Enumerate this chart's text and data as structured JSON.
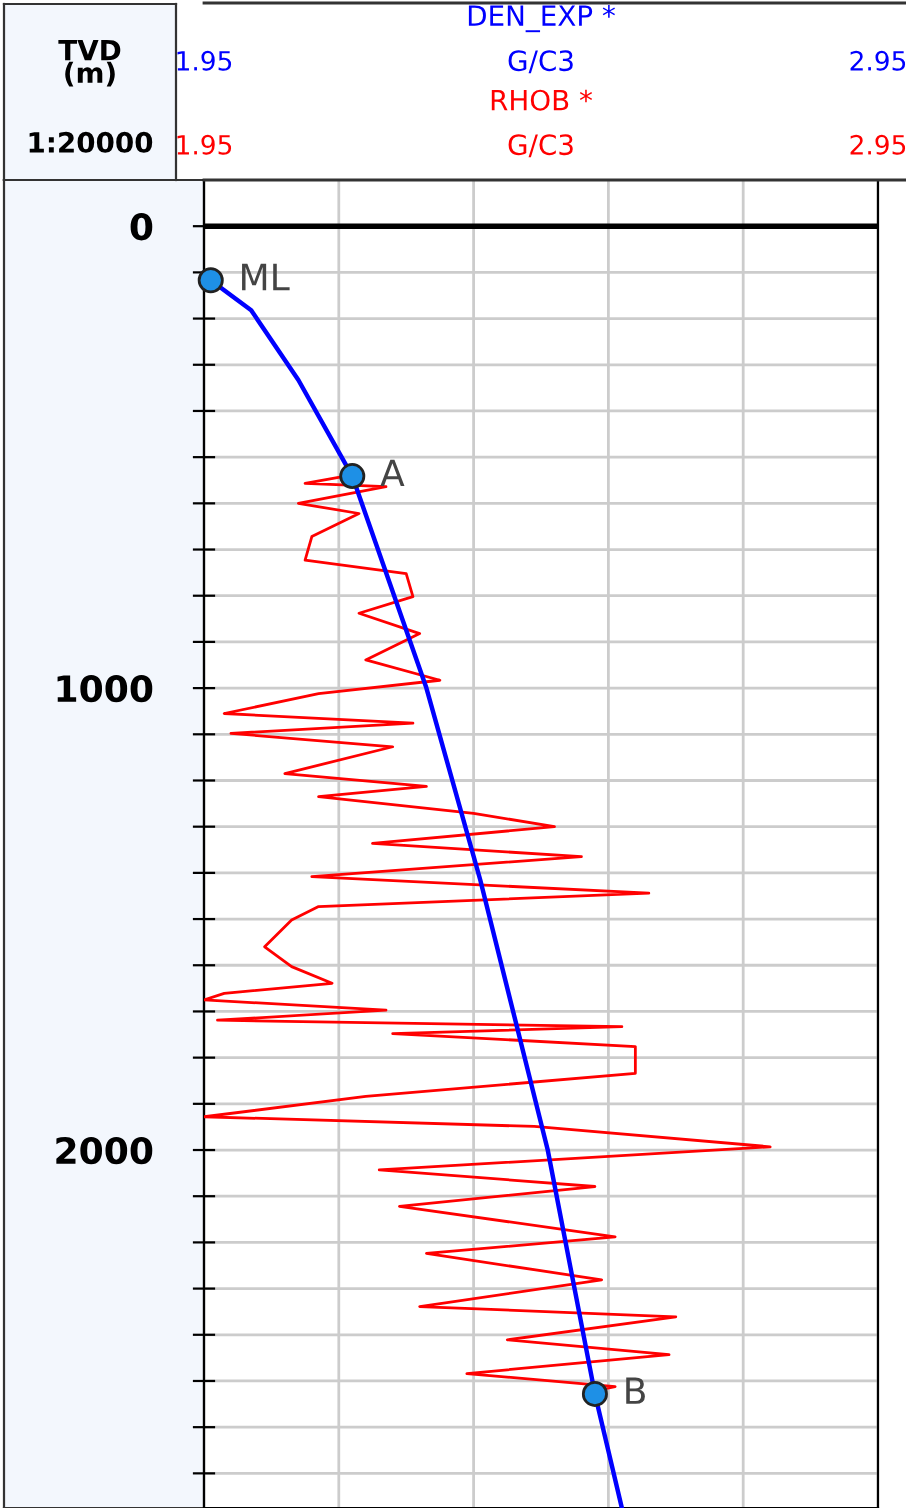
{
  "chart_data": {
    "type": "line",
    "ylabel": "TVD\n(m)",
    "xlabel": "G/C3",
    "annotations": [
      "1:20000",
      {
        "text": "ML",
        "x": 1.96,
        "y": 117
      },
      {
        "text": "A",
        "x": 2.17,
        "y": 541
      },
      {
        "text": "B",
        "x": 2.53,
        "y": 2528
      }
    ],
    "x2lim": [
      1.95,
      2.95
    ],
    "x2ticks": [
      1.95,
      2.95
    ],
    "xlim": [
      1.95,
      2.95
    ],
    "ylim": [
      2775,
      -100
    ],
    "xticks": [
      1.95,
      {
        "value": 2.15,
        "label": null
      },
      {
        "value": 2.35,
        "label": null
      },
      {
        "value": 2.55,
        "label": null
      },
      {
        "value": 2.75,
        "label": null
      },
      2.95
    ],
    "yticks": [
      0,
      {
        "value": 100,
        "label": null
      },
      {
        "value": 200,
        "label": null
      },
      {
        "value": 300,
        "label": null
      },
      {
        "value": 400,
        "label": null
      },
      {
        "value": 500,
        "label": null
      },
      {
        "value": 600,
        "label": null
      },
      {
        "value": 700,
        "label": null
      },
      {
        "value": 800,
        "label": null
      },
      {
        "value": 900,
        "label": null
      },
      1000,
      {
        "value": 1100,
        "label": null
      },
      {
        "value": 1200,
        "label": null
      },
      {
        "value": 1300,
        "label": null
      },
      {
        "value": 1400,
        "label": null
      },
      {
        "value": 1500,
        "label": null
      },
      {
        "value": 1600,
        "label": null
      },
      {
        "value": 1700,
        "label": null
      },
      {
        "value": 1800,
        "label": null
      },
      {
        "value": 1900,
        "label": null
      },
      2000,
      {
        "value": 2100,
        "label": null
      },
      {
        "value": 2200,
        "label": null
      },
      {
        "value": 2300,
        "label": null
      },
      {
        "value": 2400,
        "label": null
      },
      {
        "value": 2500,
        "label": null
      },
      {
        "value": 2600,
        "label": null
      },
      {
        "value": 2700,
        "label": null
      }
    ],
    "grid": true,
    "legend": false,
    "ref_lines": [
      {
        "axis": "y",
        "value": 0,
        "color": "#000000"
      }
    ],
    "series": [
      {
        "name": "DEN_EXP *",
        "color": "#0000ff",
        "x": [
          1.96,
          2.02,
          2.09,
          2.17,
          2.28,
          2.36,
          2.46,
          2.53,
          2.57
        ],
        "values": [
          117,
          182,
          333,
          541,
          1000,
          1416,
          2000,
          2528,
          2775
        ]
      },
      {
        "name": "RHOB *",
        "color": "#ff0000",
        "x": [
          2.16,
          2.1,
          2.22,
          2.09,
          2.18,
          2.11,
          2.1,
          2.25,
          2.26,
          2.18,
          2.27,
          2.19,
          2.3,
          2.12,
          1.98,
          2.26,
          1.99,
          2.23,
          2.07,
          2.28,
          2.12,
          2.35,
          2.47,
          2.2,
          2.51,
          2.11,
          2.61,
          2.12,
          2.08,
          2.04,
          2.08,
          2.14,
          1.98,
          1.95,
          2.22,
          1.97,
          2.57,
          2.23,
          2.59,
          2.59,
          2.19,
          1.95,
          2.44,
          2.79,
          2.21,
          2.53,
          2.24,
          2.56,
          2.28,
          2.54,
          2.27,
          2.65,
          2.4,
          2.64,
          2.34,
          2.56,
          2.52
        ],
        "values": [
          541,
          557,
          564,
          600,
          622,
          672,
          723,
          752,
          802,
          838,
          882,
          939,
          983,
          1012,
          1055,
          1076,
          1098,
          1127,
          1185,
          1213,
          1235,
          1271,
          1300,
          1336,
          1365,
          1408,
          1444,
          1473,
          1502,
          1560,
          1603,
          1639,
          1661,
          1675,
          1697,
          1719,
          1733,
          1748,
          1776,
          1834,
          1884,
          1928,
          1949,
          1993,
          2043,
          2079,
          2122,
          2188,
          2224,
          2281,
          2339,
          2361,
          2411,
          2443,
          2484,
          2512,
          2524
        ]
      },
      {
        "type": "scatter",
        "color": "#1e90e6",
        "marker": "circle",
        "x": [
          1.96,
          2.17,
          2.53
        ],
        "values": [
          117,
          541,
          2528
        ]
      }
    ]
  }
}
